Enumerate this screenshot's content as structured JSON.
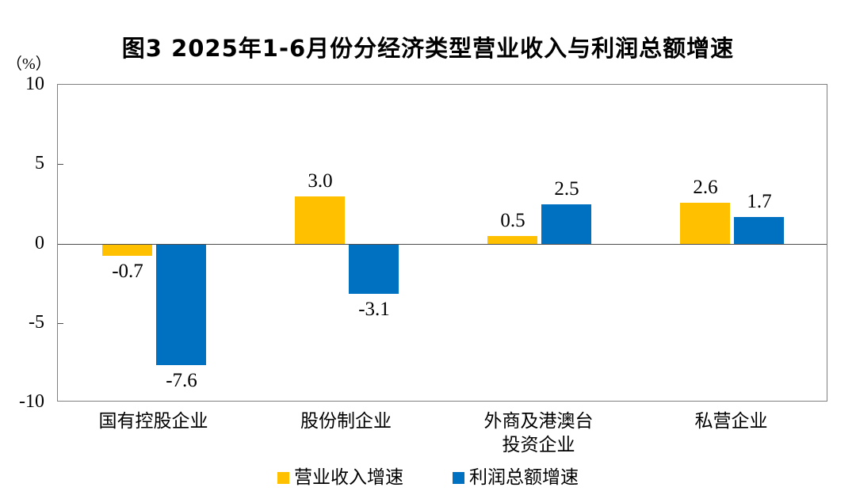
{
  "chart_data": {
    "type": "bar",
    "title": "图3 2025年1-6月份分经济类型营业收入与利润总额增速",
    "unit_label": "（%）",
    "categories": [
      "国有控股企业",
      "股份制企业",
      "外商及港澳台\n投资企业",
      "私营企业"
    ],
    "series": [
      {
        "name": "营业收入增速",
        "color": "#FFC000",
        "values": [
          -0.7,
          3.0,
          0.5,
          2.6
        ]
      },
      {
        "name": "利润总额增速",
        "color": "#0070C0",
        "values": [
          -7.6,
          -3.1,
          2.5,
          1.7
        ]
      }
    ],
    "ylim": [
      -10,
      10
    ],
    "yticks": [
      10,
      5,
      0,
      -5,
      -10
    ],
    "grid": false,
    "plot_border": true,
    "value_labels": true,
    "value_label_decimals": 1,
    "legend_position": "bottom"
  }
}
